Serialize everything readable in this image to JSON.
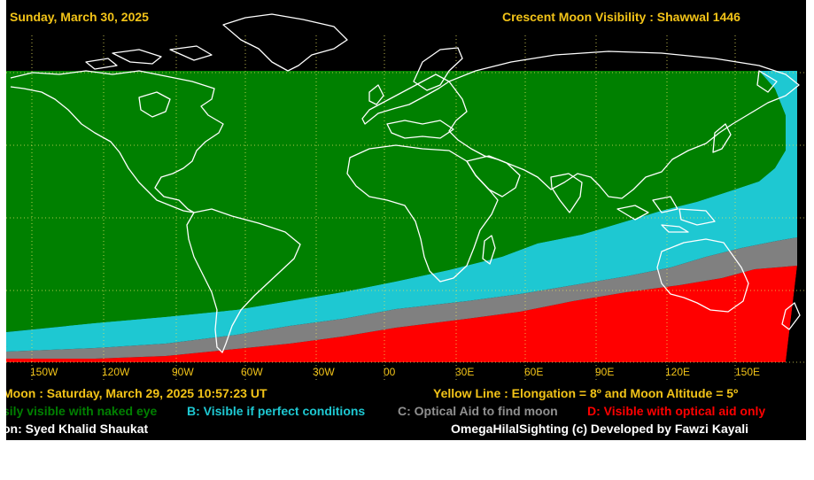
{
  "header": {
    "date": "Sunday, March 30, 2025",
    "title": "Crescent Moon Visibility : Shawwal  1446"
  },
  "longitude_labels": [
    "150W",
    "120W",
    "90W",
    "60W",
    "30W",
    "00",
    "30E",
    "60E",
    "90E",
    "120E",
    "150E"
  ],
  "footer": {
    "new_moon": "Moon : Saturday, March 29, 2025  10:57:23  UT",
    "yellow_line": "Yellow Line : Elongation = 8º  and Moon Altitude = 5º",
    "legend_a": "sily visible with naked eye",
    "legend_b": "B: Visible if perfect conditions",
    "legend_c": "C: Optical Aid to find moon",
    "legend_d": "D: Visible with optical aid only",
    "credit_left": "on: Syed Khalid Shaukat",
    "credit_right": "OmegaHilalSighting  (c)  Developed by Fawzi Kayali"
  },
  "colors": {
    "background": "#000000",
    "zone_a": "#008000",
    "zone_b": "#1ec8d2",
    "zone_c": "#808080",
    "zone_d": "#ff0000",
    "header_text": "#f2c318",
    "grid": "#e8e060",
    "coast": "#ffffff"
  }
}
